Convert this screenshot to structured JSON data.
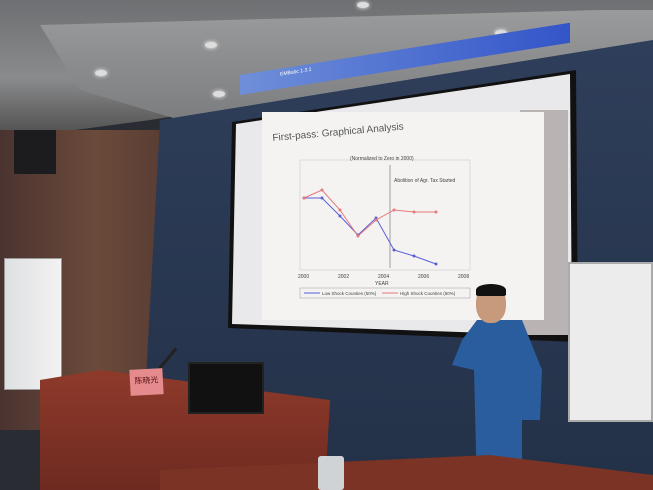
{
  "slide": {
    "app_title": "EMBabc 1.3.1",
    "title": "First-pass: Graphical Analysis",
    "subtitle": "(Normalized to Zero in 2000)",
    "annotation": "Abolition of Agr. Tax Started",
    "xlabel": "YEAR",
    "x_ticks": [
      "2000",
      "2002",
      "2004",
      "2006",
      "2008"
    ],
    "legend": [
      "Low Shock Counties (50%)",
      "High Shock Counties (50%)"
    ],
    "colors": {
      "low": "#5a5fd8",
      "high": "#e57a7a"
    }
  },
  "name_card": "陈晓光"
}
